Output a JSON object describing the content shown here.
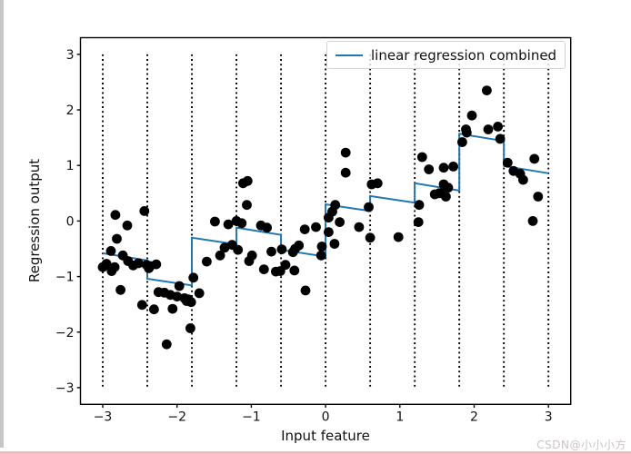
{
  "figure": {
    "watermark": "CSDN@小小小方"
  },
  "chart_data": {
    "type": "scatter",
    "title": "",
    "xlabel": "Input feature",
    "ylabel": "Regression output",
    "xlim": [
      -3.3,
      3.3
    ],
    "ylim": [
      -3.3,
      3.3
    ],
    "grid": false,
    "x_ticks": {
      "values": [
        -3,
        -2,
        -1,
        0,
        1,
        2,
        3
      ],
      "labels": [
        "−3",
        "−2",
        "−1",
        "0",
        "1",
        "2",
        "3"
      ]
    },
    "y_ticks": {
      "values": [
        -3,
        -2,
        -1,
        0,
        1,
        2,
        3
      ],
      "labels": [
        "−3",
        "−2",
        "−1",
        "0",
        "1",
        "2",
        "3"
      ]
    },
    "bin_edges": [
      -3,
      -2.4,
      -1.8,
      -1.2,
      -0.6,
      0,
      0.6,
      1.2,
      1.8,
      2.4,
      3
    ],
    "bin_lines_yspan": [
      -3,
      3
    ],
    "legend": {
      "position": "upper right",
      "entries": [
        {
          "label": "linear regression combined",
          "color": "#1f77b4"
        }
      ]
    },
    "colors": {
      "scatter": "#000000",
      "line": "#1f77b4",
      "axis": "#000000",
      "tick_label": "#111111"
    },
    "scatter_points": [
      [
        -3.0,
        -0.83
      ],
      [
        -2.95,
        -0.77
      ],
      [
        -2.89,
        -0.54
      ],
      [
        -2.88,
        -0.9
      ],
      [
        -2.84,
        -0.83
      ],
      [
        -2.83,
        0.11
      ],
      [
        -2.81,
        -0.32
      ],
      [
        -2.76,
        -1.24
      ],
      [
        -2.73,
        -0.62
      ],
      [
        -2.67,
        -0.08
      ],
      [
        -2.66,
        -0.72
      ],
      [
        -2.59,
        -0.8
      ],
      [
        -2.52,
        -0.76
      ],
      [
        -2.47,
        -1.51
      ],
      [
        -2.44,
        0.18
      ],
      [
        -2.41,
        -0.79
      ],
      [
        -2.38,
        -0.85
      ],
      [
        -2.36,
        -0.81
      ],
      [
        -2.31,
        -1.59
      ],
      [
        -2.28,
        -0.78
      ],
      [
        -2.25,
        -1.28
      ],
      [
        -2.17,
        -1.29
      ],
      [
        -2.14,
        -2.22
      ],
      [
        -2.09,
        -1.33
      ],
      [
        -2.06,
        -1.58
      ],
      [
        -2.0,
        -1.36
      ],
      [
        -1.97,
        -1.17
      ],
      [
        -1.9,
        -1.39
      ],
      [
        -1.87,
        -1.44
      ],
      [
        -1.85,
        -1.41
      ],
      [
        -1.82,
        -1.93
      ],
      [
        -1.81,
        -1.46
      ],
      [
        -1.78,
        -1.02
      ],
      [
        -1.7,
        -1.3
      ],
      [
        -1.6,
        -0.73
      ],
      [
        -1.49,
        -0.01
      ],
      [
        -1.42,
        -0.62
      ],
      [
        -1.36,
        -0.48
      ],
      [
        -1.31,
        -0.06
      ],
      [
        -1.26,
        -0.43
      ],
      [
        -1.2,
        0.0
      ],
      [
        -1.18,
        -0.52
      ],
      [
        -1.13,
        -0.04
      ],
      [
        -1.11,
        0.68
      ],
      [
        -1.06,
        0.29
      ],
      [
        -1.05,
        0.72
      ],
      [
        -1.03,
        -0.72
      ],
      [
        -0.99,
        -0.62
      ],
      [
        -0.87,
        -0.08
      ],
      [
        -0.83,
        -0.87
      ],
      [
        -0.79,
        -0.12
      ],
      [
        -0.73,
        -0.55
      ],
      [
        -0.67,
        -0.91
      ],
      [
        -0.61,
        -0.9
      ],
      [
        -0.59,
        -0.51
      ],
      [
        -0.54,
        -0.79
      ],
      [
        -0.44,
        -0.56
      ],
      [
        -0.42,
        -0.89
      ],
      [
        -0.41,
        -0.5
      ],
      [
        -0.36,
        -0.44
      ],
      [
        -0.28,
        -0.15
      ],
      [
        -0.27,
        -1.25
      ],
      [
        -0.13,
        -0.11
      ],
      [
        -0.06,
        -0.62
      ],
      [
        -0.05,
        -0.46
      ],
      [
        0.04,
        0.06
      ],
      [
        0.04,
        -0.2
      ],
      [
        0.09,
        0.17
      ],
      [
        0.12,
        -0.41
      ],
      [
        0.13,
        0.29
      ],
      [
        0.19,
        -0.02
      ],
      [
        0.27,
        1.23
      ],
      [
        0.27,
        0.87
      ],
      [
        0.45,
        -0.11
      ],
      [
        0.58,
        0.25
      ],
      [
        0.6,
        -0.3
      ],
      [
        0.62,
        0.66
      ],
      [
        0.7,
        0.68
      ],
      [
        0.98,
        -0.29
      ],
      [
        1.25,
        -0.02
      ],
      [
        1.26,
        0.29
      ],
      [
        1.3,
        1.15
      ],
      [
        1.39,
        0.93
      ],
      [
        1.47,
        0.48
      ],
      [
        1.53,
        0.5
      ],
      [
        1.59,
        0.96
      ],
      [
        1.59,
        0.66
      ],
      [
        1.59,
        0.52
      ],
      [
        1.62,
        0.44
      ],
      [
        1.65,
        0.6
      ],
      [
        1.72,
        0.98
      ],
      [
        1.84,
        1.42
      ],
      [
        1.89,
        1.65
      ],
      [
        1.9,
        1.59
      ],
      [
        1.97,
        1.9
      ],
      [
        2.17,
        2.35
      ],
      [
        2.19,
        1.65
      ],
      [
        2.32,
        1.7
      ],
      [
        2.35,
        1.48
      ],
      [
        2.45,
        1.05
      ],
      [
        2.53,
        0.9
      ],
      [
        2.62,
        0.85
      ],
      [
        2.66,
        0.74
      ],
      [
        2.79,
        0.0
      ],
      [
        2.81,
        1.12
      ],
      [
        2.86,
        0.44
      ]
    ],
    "regression_line": {
      "name": "linear regression combined",
      "color": "#1f77b4",
      "points": [
        [
          -3,
          -0.58
        ],
        [
          -2.4,
          -0.71
        ],
        [
          -2.4,
          -1.04
        ],
        [
          -1.8,
          -1.16
        ],
        [
          -1.8,
          -0.3
        ],
        [
          -1.2,
          -0.42
        ],
        [
          -1.2,
          -0.12
        ],
        [
          -0.6,
          -0.25
        ],
        [
          -0.6,
          -0.52
        ],
        [
          0,
          -0.64
        ],
        [
          0,
          0.3
        ],
        [
          0.6,
          0.18
        ],
        [
          0.6,
          0.45
        ],
        [
          1.2,
          0.33
        ],
        [
          1.2,
          0.68
        ],
        [
          1.8,
          0.55
        ],
        [
          1.8,
          1.57
        ],
        [
          2.4,
          1.44
        ],
        [
          2.4,
          0.99
        ],
        [
          3,
          0.86
        ]
      ]
    }
  }
}
